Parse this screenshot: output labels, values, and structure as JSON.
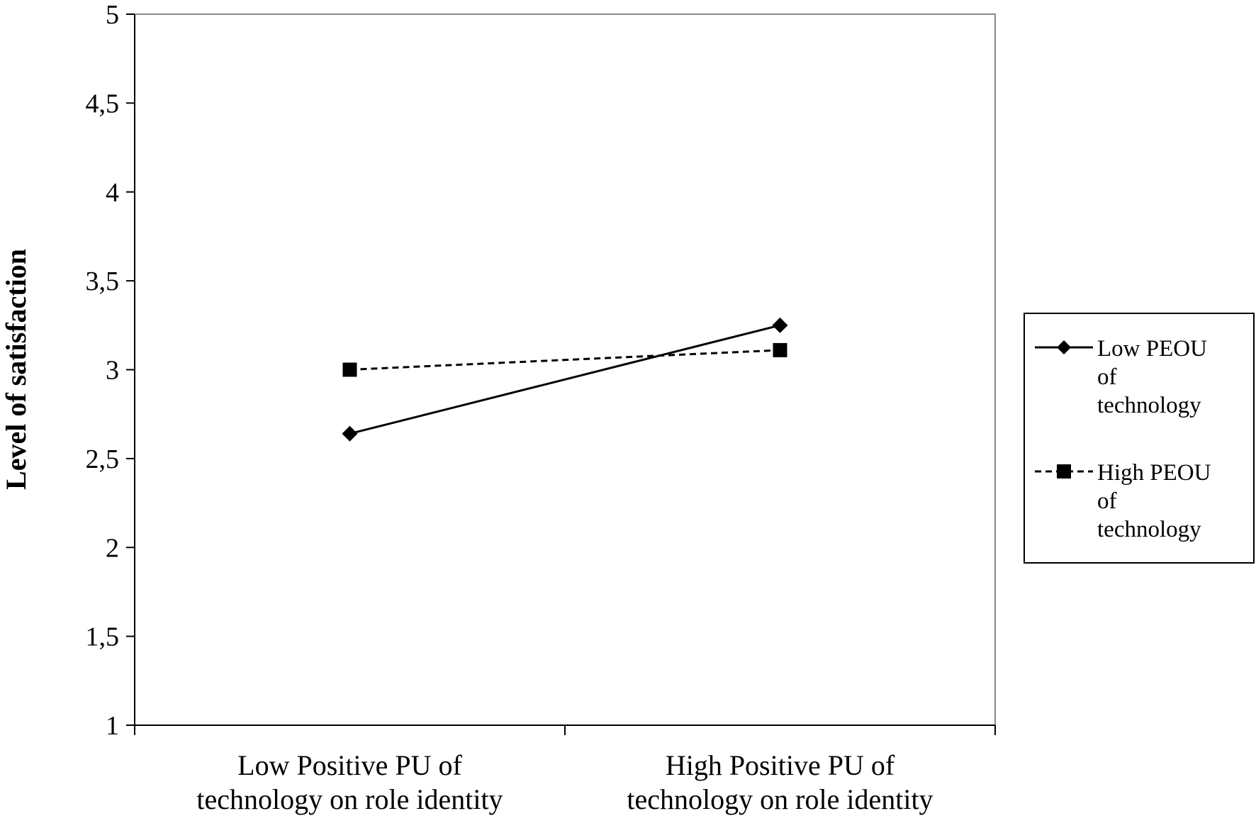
{
  "chart_data": {
    "type": "line",
    "title": "",
    "xlabel": "",
    "ylabel": "Level of satisfaction",
    "ylim": [
      1,
      5
    ],
    "yticks": [
      1,
      1.5,
      2,
      2.5,
      3,
      3.5,
      4,
      4.5,
      5
    ],
    "ytick_labels": [
      "1",
      "1,5",
      "2",
      "2,5",
      "3",
      "3,5",
      "4",
      "4,5",
      "5"
    ],
    "categories": [
      [
        "Low Positive PU of",
        "technology on role identity"
      ],
      [
        "High Positive PU of",
        "technology on role identity"
      ]
    ],
    "series": [
      {
        "name": [
          "Low PEOU",
          "of",
          "technology"
        ],
        "values": [
          2.64,
          3.25
        ],
        "marker": "diamond",
        "line_style": "solid",
        "color": "#000000"
      },
      {
        "name": [
          "High PEOU",
          "of",
          "technology"
        ],
        "values": [
          3.0,
          3.11
        ],
        "marker": "square",
        "line_style": "dashed",
        "color": "#000000"
      }
    ],
    "grid": false,
    "legend_position": "right"
  }
}
